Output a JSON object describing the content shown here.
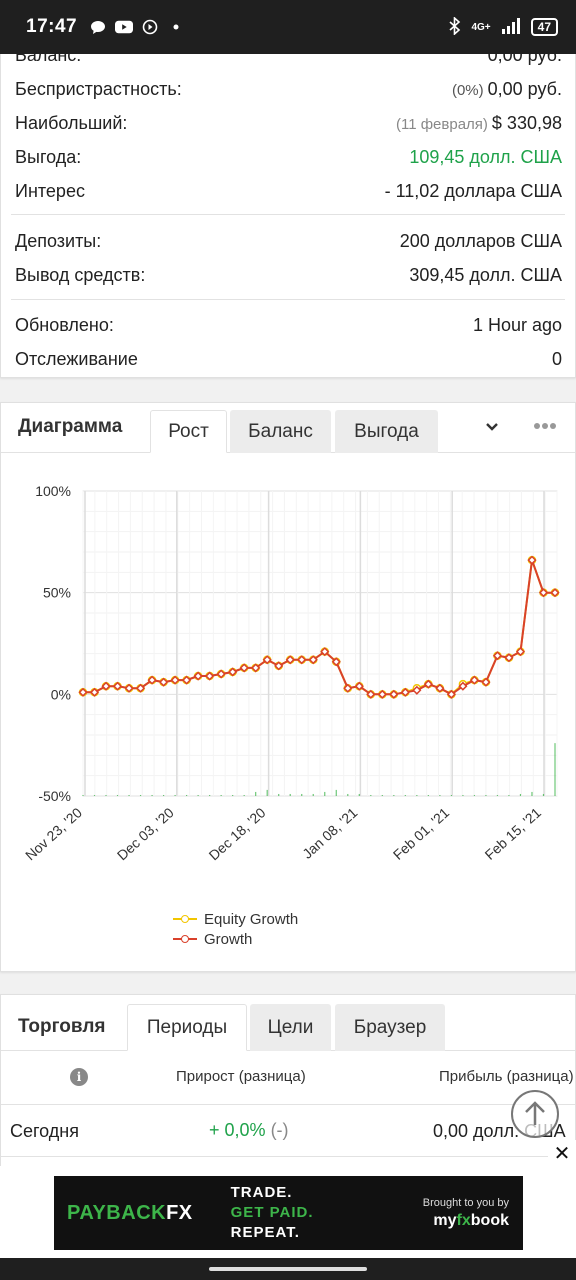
{
  "status_bar": {
    "time": "17:47",
    "notification_icons": [
      "message-icon",
      "youtube-icon",
      "play-circle-icon",
      "dot-icon"
    ],
    "network": "4G+",
    "battery": "47"
  },
  "stats": {
    "rows": [
      {
        "label": "Баланс:",
        "value": "0,00 руб."
      },
      {
        "label": "Беспристрастность:",
        "note": "(0%)",
        "value": "0,00 руб."
      },
      {
        "label": "Наибольший:",
        "note": "(11 февраля)",
        "value": "$ 330,98"
      },
      {
        "label": "Выгода:",
        "value": "109,45 долл. США",
        "color": "#1fa24a"
      },
      {
        "label": "Интерес",
        "value": "- 11,02 доллара США"
      },
      {
        "label": "Депозиты:",
        "value": "200 долларов США"
      },
      {
        "label": "Вывод средств:",
        "value": "309,45 долл. США"
      },
      {
        "label": "Обновлено:",
        "value": "1 Hour ago"
      },
      {
        "label": "Отслеживание",
        "value": "0"
      }
    ]
  },
  "chart_panel": {
    "title": "Диаграмма",
    "tabs": [
      "Рост",
      "Баланс",
      "Выгода"
    ],
    "active_tab": "Рост"
  },
  "chart_data": {
    "type": "line",
    "x_tick_labels": [
      "Nov 23, '20",
      "Dec 03, '20",
      "Dec 18, '20",
      "Jan 08, '21",
      "Feb 01, '21",
      "Feb 15, '21"
    ],
    "y_tick_labels": [
      "100%",
      "50%",
      "0%",
      "-50%"
    ],
    "ylim": [
      -50,
      100
    ],
    "grid": true,
    "legend_position": "bottom-left",
    "series": [
      {
        "name": "Equity Growth",
        "color": "#f2c500",
        "values": [
          1,
          1,
          4,
          4,
          3,
          3,
          7,
          6,
          7,
          7,
          9,
          9,
          10,
          11,
          13,
          13,
          17,
          14,
          17,
          17,
          17,
          21,
          16,
          3,
          4,
          0,
          0,
          0,
          1,
          3,
          5,
          3,
          0,
          5,
          7,
          6,
          19,
          18,
          21,
          66,
          50,
          50
        ]
      },
      {
        "name": "Growth",
        "color": "#d9412b",
        "values": [
          1,
          1,
          4,
          4,
          3,
          3,
          7,
          6,
          7,
          7,
          9,
          9,
          10,
          11,
          13,
          13,
          17,
          14,
          17,
          17,
          17,
          21,
          16,
          3,
          4,
          0,
          0,
          0,
          1,
          2,
          5,
          3,
          0,
          4,
          7,
          6,
          19,
          18,
          21,
          66,
          50,
          50
        ]
      }
    ],
    "volume_bars": {
      "color": "#3db54a",
      "values": [
        0.5,
        0.5,
        0.5,
        0.5,
        0.5,
        0.5,
        0.5,
        0.5,
        0.5,
        0.5,
        0.5,
        0.5,
        0.5,
        0.5,
        0.5,
        2,
        3,
        1,
        1,
        1,
        1,
        2,
        3,
        1,
        1,
        0.5,
        0.5,
        0.5,
        0.5,
        0.5,
        0.5,
        0.5,
        0.5,
        0.5,
        0.5,
        0.5,
        0.5,
        0.5,
        1,
        2,
        1,
        26
      ]
    }
  },
  "periods_panel": {
    "title": "Торговля",
    "tabs": [
      "Периоды",
      "Цели",
      "Браузер"
    ],
    "active_tab": "Периоды",
    "columns": [
      "Прирост (разница)",
      "Прибыль (разница)"
    ],
    "rows": [
      {
        "period": "Сегодня",
        "growth": "+ 0,0%",
        "growth_diff": "(-)",
        "profit": "0,00 долл. США"
      }
    ]
  },
  "ad": {
    "brand_a": "PAYBACK",
    "brand_b": "FX",
    "slogan": [
      "TRADE.",
      "GET PAID.",
      "REPEAT."
    ],
    "brought_by": "Brought to you by",
    "logo_a": "my",
    "logo_b": "fx",
    "logo_c": "book",
    "close_label": "✕"
  }
}
